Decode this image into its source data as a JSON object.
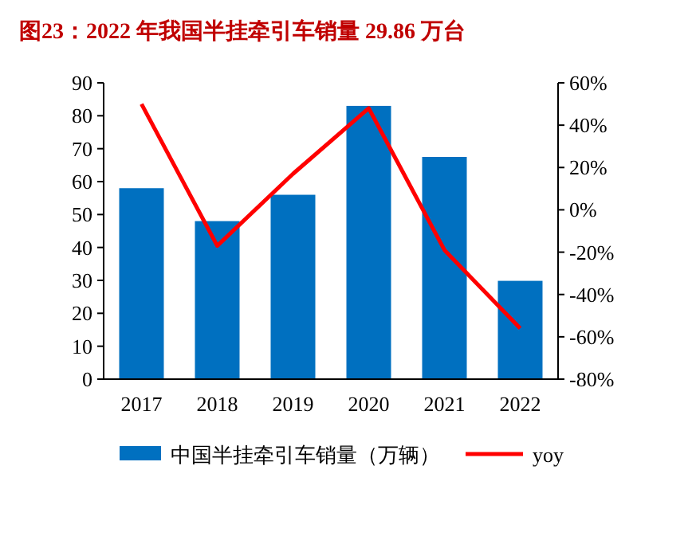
{
  "chart_data": {
    "type": "bar",
    "title": "图23：2022 年我国半挂牵引车销量 29.86 万台",
    "categories": [
      "2017",
      "2018",
      "2019",
      "2020",
      "2021",
      "2022"
    ],
    "series": [
      {
        "name": "中国半挂牵引车销量（万辆）",
        "color": "#0070c0",
        "values": [
          58,
          48,
          56,
          83,
          67.5,
          29.86
        ]
      },
      {
        "name": "yoy",
        "type": "line",
        "axis": "y2",
        "color": "#ff0000",
        "values": [
          50,
          -17,
          17,
          48,
          -19,
          -56
        ]
      }
    ],
    "ylim": [
      0,
      90
    ],
    "yticks": [
      0,
      10,
      20,
      30,
      40,
      50,
      60,
      70,
      80,
      90
    ],
    "y2lim": [
      -80,
      60
    ],
    "y2ticks": [
      {
        "value": -80,
        "label": "-80%"
      },
      {
        "value": -60,
        "label": "-60%"
      },
      {
        "value": -40,
        "label": "-40%"
      },
      {
        "value": -20,
        "label": "-20%"
      },
      {
        "value": 0,
        "label": "0%"
      },
      {
        "value": 20,
        "label": "20%"
      },
      {
        "value": 40,
        "label": "40%"
      },
      {
        "value": 60,
        "label": "60%"
      }
    ],
    "legend": "bottom",
    "grid": false
  }
}
